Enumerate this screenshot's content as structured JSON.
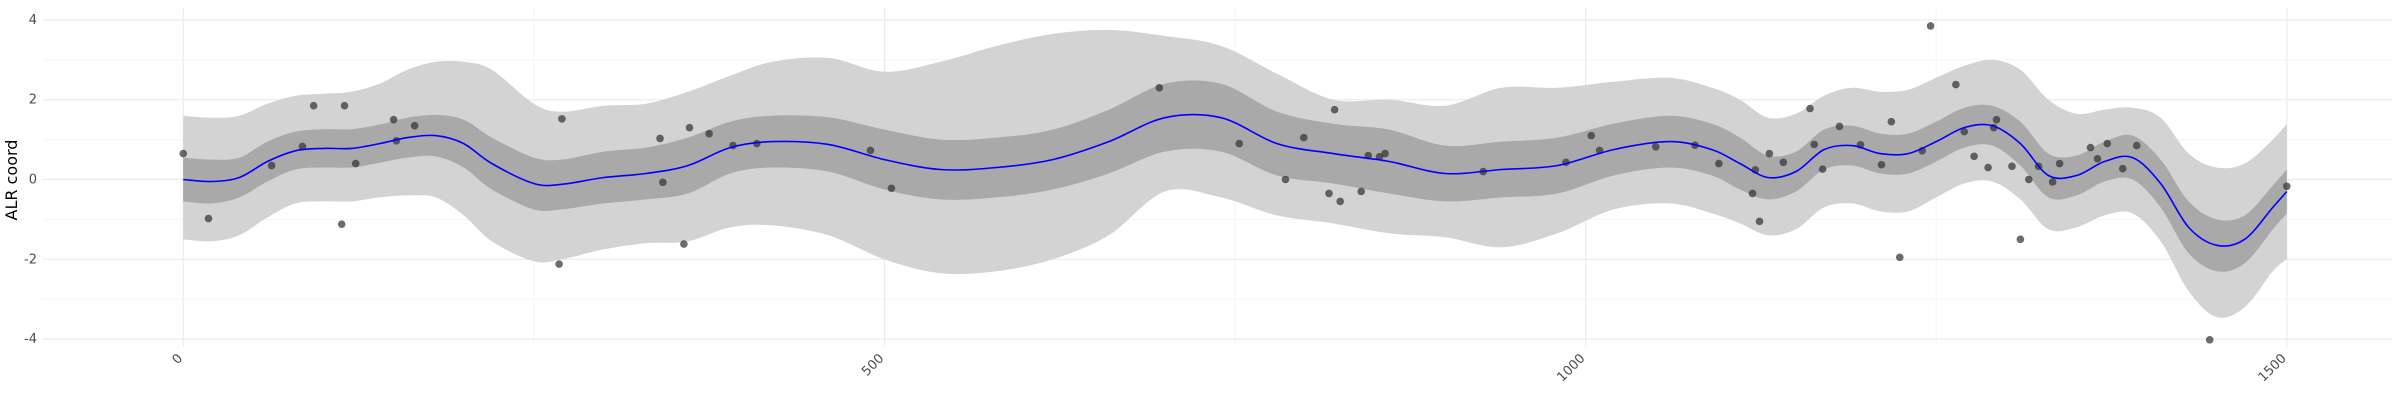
{
  "chart_data": {
    "type": "line",
    "title": "",
    "xlabel": "",
    "ylabel": "ALR coord",
    "xlim": [
      -100,
      1575
    ],
    "ylim": [
      -4.2,
      4.3
    ],
    "x_ticks": [
      0,
      500,
      1000,
      1500
    ],
    "x_tick_labels": [
      "0",
      "500",
      "1000",
      "1500"
    ],
    "x_minor_ticks": [
      250,
      750,
      1250
    ],
    "y_ticks": [
      -4,
      -2,
      0,
      2,
      4
    ],
    "y_tick_labels": [
      "-4",
      "-2",
      "0",
      "2",
      "4"
    ],
    "y_minor_ticks": [
      -3,
      -1,
      1,
      3
    ],
    "grid": true,
    "legend": "none",
    "colors": {
      "mean_line": "#0000ff",
      "inner_band": "#a9a9a9",
      "outer_band": "#d3d3d3",
      "points": "#333333",
      "grid_major": "#ebebeb",
      "grid_minor": "#f5f5f5"
    },
    "mean": {
      "x": [
        0,
        20,
        40,
        60,
        80,
        100,
        120,
        140,
        160,
        180,
        200,
        220,
        250,
        270,
        300,
        330,
        360,
        390,
        420,
        460,
        500,
        540,
        580,
        620,
        660,
        700,
        740,
        780,
        820,
        860,
        900,
        940,
        980,
        1020,
        1060,
        1090,
        1110,
        1130,
        1150,
        1170,
        1190,
        1210,
        1230,
        1250,
        1270,
        1290,
        1310,
        1330,
        1350,
        1370,
        1390,
        1410,
        1430,
        1450,
        1470,
        1490,
        1500
      ],
      "y": [
        0.0,
        -0.05,
        0.05,
        0.45,
        0.72,
        0.78,
        0.78,
        0.9,
        1.05,
        1.1,
        0.9,
        0.4,
        -0.1,
        -0.12,
        0.05,
        0.15,
        0.35,
        0.8,
        0.95,
        0.88,
        0.5,
        0.25,
        0.3,
        0.5,
        0.95,
        1.55,
        1.55,
        0.9,
        0.65,
        0.45,
        0.15,
        0.25,
        0.35,
        0.75,
        0.95,
        0.75,
        0.4,
        0.05,
        0.2,
        0.75,
        0.85,
        0.65,
        0.65,
        0.95,
        1.3,
        1.35,
        0.9,
        0.1,
        0.1,
        0.45,
        0.55,
        -0.1,
        -1.2,
        -1.65,
        -1.5,
        -0.7,
        -0.3
      ]
    },
    "inner_band": {
      "x": [
        0,
        20,
        40,
        60,
        80,
        100,
        120,
        140,
        160,
        180,
        200,
        220,
        250,
        270,
        300,
        330,
        360,
        390,
        420,
        460,
        500,
        540,
        580,
        620,
        660,
        700,
        740,
        780,
        820,
        860,
        900,
        940,
        980,
        1020,
        1060,
        1090,
        1110,
        1130,
        1150,
        1170,
        1190,
        1210,
        1230,
        1250,
        1270,
        1290,
        1310,
        1330,
        1350,
        1370,
        1390,
        1410,
        1430,
        1450,
        1470,
        1490,
        1500
      ],
      "lower": [
        -0.55,
        -0.6,
        -0.45,
        -0.05,
        0.25,
        0.3,
        0.3,
        0.42,
        0.55,
        0.58,
        0.3,
        -0.25,
        -0.75,
        -0.75,
        -0.6,
        -0.5,
        -0.35,
        0.15,
        0.3,
        0.2,
        -0.25,
        -0.5,
        -0.45,
        -0.25,
        0.15,
        0.7,
        0.7,
        0.1,
        -0.1,
        -0.35,
        -0.55,
        -0.45,
        -0.35,
        0.1,
        0.3,
        0.1,
        -0.25,
        -0.5,
        -0.3,
        0.25,
        0.35,
        0.15,
        0.15,
        0.45,
        0.8,
        0.85,
        0.35,
        -0.45,
        -0.4,
        -0.05,
        0.0,
        -0.7,
        -1.85,
        -2.3,
        -2.1,
        -1.25,
        -0.85
      ],
      "upper": [
        0.55,
        0.5,
        0.55,
        0.95,
        1.2,
        1.26,
        1.26,
        1.38,
        1.55,
        1.62,
        1.5,
        1.05,
        0.55,
        0.5,
        0.7,
        0.8,
        1.05,
        1.45,
        1.6,
        1.56,
        1.25,
        1.0,
        1.05,
        1.25,
        1.75,
        2.4,
        2.4,
        1.7,
        1.4,
        1.25,
        0.85,
        0.95,
        1.05,
        1.4,
        1.6,
        1.4,
        1.05,
        0.6,
        0.7,
        1.25,
        1.35,
        1.15,
        1.15,
        1.45,
        1.8,
        1.85,
        1.45,
        0.65,
        0.6,
        0.95,
        1.1,
        0.5,
        -0.55,
        -1.0,
        -0.9,
        -0.15,
        0.25
      ]
    },
    "outer_band": {
      "x": [
        0,
        20,
        40,
        60,
        80,
        100,
        120,
        140,
        160,
        180,
        200,
        220,
        250,
        270,
        300,
        330,
        360,
        390,
        420,
        460,
        500,
        540,
        580,
        620,
        660,
        700,
        740,
        780,
        820,
        860,
        900,
        940,
        980,
        1020,
        1060,
        1090,
        1110,
        1130,
        1150,
        1170,
        1190,
        1210,
        1230,
        1250,
        1270,
        1290,
        1310,
        1330,
        1350,
        1370,
        1390,
        1410,
        1430,
        1450,
        1470,
        1490,
        1500
      ],
      "lower": [
        -1.5,
        -1.55,
        -1.4,
        -0.95,
        -0.6,
        -0.55,
        -0.55,
        -0.45,
        -0.4,
        -0.45,
        -0.9,
        -1.55,
        -2.05,
        -2.0,
        -1.75,
        -1.6,
        -1.55,
        -1.2,
        -1.15,
        -1.4,
        -2.0,
        -2.35,
        -2.3,
        -2.0,
        -1.4,
        -0.3,
        -0.45,
        -0.9,
        -1.1,
        -1.35,
        -1.45,
        -1.7,
        -1.35,
        -0.75,
        -0.6,
        -0.85,
        -1.1,
        -1.4,
        -1.25,
        -0.7,
        -0.6,
        -0.8,
        -0.8,
        -0.45,
        -0.1,
        -0.05,
        -0.5,
        -1.25,
        -1.2,
        -0.9,
        -0.85,
        -1.55,
        -2.8,
        -3.45,
        -3.2,
        -2.3,
        -2.0
      ],
      "upper": [
        1.6,
        1.55,
        1.6,
        1.9,
        2.1,
        2.15,
        2.2,
        2.4,
        2.75,
        2.95,
        2.95,
        2.75,
        1.9,
        1.7,
        1.85,
        1.9,
        2.2,
        2.6,
        2.95,
        3.05,
        2.7,
        2.95,
        3.35,
        3.65,
        3.75,
        3.6,
        3.35,
        2.65,
        2.0,
        2.0,
        1.85,
        2.3,
        2.3,
        2.45,
        2.55,
        2.3,
        2.0,
        1.55,
        1.65,
        2.1,
        2.3,
        2.2,
        2.25,
        2.55,
        2.85,
        3.0,
        2.75,
        2.0,
        1.65,
        1.75,
        1.8,
        1.55,
        0.65,
        0.3,
        0.4,
        1.0,
        1.4
      ]
    },
    "points": {
      "x": [
        0,
        18,
        63,
        85,
        93,
        113,
        115,
        123,
        150,
        152,
        165,
        268,
        270,
        340,
        342,
        357,
        361,
        375,
        392,
        409,
        490,
        505,
        696,
        753,
        786,
        799,
        817,
        821,
        825,
        840,
        845,
        853,
        857,
        927,
        986,
        1004,
        1010,
        1050,
        1078,
        1095,
        1119,
        1121,
        1124,
        1131,
        1141,
        1160,
        1163,
        1169,
        1181,
        1196,
        1211,
        1218,
        1224,
        1240,
        1246,
        1264,
        1270,
        1277,
        1287,
        1291,
        1293,
        1304,
        1310,
        1316,
        1323,
        1333,
        1338,
        1360,
        1365,
        1372,
        1383,
        1393,
        1445,
        1500
      ],
      "y": [
        0.65,
        -0.98,
        0.35,
        0.83,
        1.85,
        -1.12,
        1.85,
        0.4,
        1.5,
        0.97,
        1.35,
        -2.12,
        1.52,
        1.03,
        -0.07,
        -1.62,
        1.3,
        1.15,
        0.85,
        0.9,
        0.73,
        -0.22,
        2.3,
        0.9,
        0.0,
        1.05,
        -0.35,
        1.75,
        -0.55,
        -0.3,
        0.6,
        0.57,
        0.65,
        0.2,
        0.43,
        1.1,
        0.73,
        0.82,
        0.86,
        0.4,
        -0.35,
        0.24,
        -1.05,
        0.65,
        0.43,
        1.78,
        0.88,
        0.26,
        1.33,
        0.87,
        0.37,
        1.45,
        -1.95,
        0.72,
        3.85,
        2.38,
        1.2,
        0.58,
        0.3,
        1.3,
        1.5,
        0.33,
        -1.5,
        0.0,
        0.33,
        -0.06,
        0.4,
        0.8,
        0.52,
        0.9,
        0.27,
        0.85,
        -4.02,
        -0.17
      ]
    }
  }
}
